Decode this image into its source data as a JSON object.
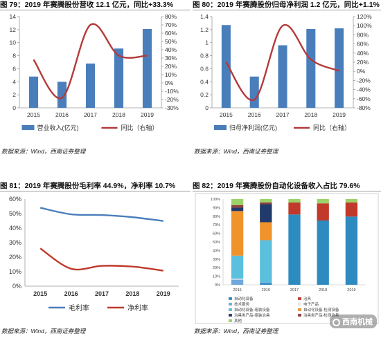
{
  "colors": {
    "bar": "#4a7ebb",
    "line": "#b33a3a",
    "line_blue": "#4a7ebb",
    "line_red": "#c0392b"
  },
  "panels": [
    {
      "title": "图 79：2019 年赛腾股份营收 12.1 亿元，同比+33.3%",
      "source": "数据来源：Wind，西南证券整理"
    },
    {
      "title": "图 80：2019 年赛腾股份归母净利润 1.2 亿元，同比+1.1%",
      "source": "数据来源：Wind，西南证券整理"
    },
    {
      "title": "图 81：2019 年赛腾股份毛利率 44.9%，净利率 10.7%",
      "source": "数据来源：Wind，西南证券整理"
    },
    {
      "title": "图 82：2019 年赛腾股份自动化设备收入占比 79.6%",
      "source": "数据来源：Wind，西南证券整理"
    }
  ],
  "watermark": "西南机械",
  "chart_data": [
    {
      "type": "bar",
      "categories": [
        "2015",
        "2016",
        "2017",
        "2018",
        "2019"
      ],
      "series": [
        {
          "name": "营业收入(亿元)",
          "type": "bar",
          "axis": "left",
          "values": [
            4.8,
            4.0,
            6.8,
            9.1,
            12.1
          ]
        },
        {
          "name": "同比（右轴）",
          "type": "line",
          "axis": "right",
          "values": [
            28,
            -18,
            70,
            33,
            33
          ]
        }
      ],
      "left_ylim": [
        0,
        14
      ],
      "left_ticks": [
        "0",
        "2",
        "4",
        "6",
        "8",
        "10",
        "12",
        "14"
      ],
      "right_ylim": [
        -30,
        80
      ],
      "right_ticks": [
        "-30%",
        "-20%",
        "-10%",
        "0%",
        "10%",
        "20%",
        "30%",
        "40%",
        "50%",
        "60%",
        "70%",
        "80%"
      ],
      "legend": "bottom"
    },
    {
      "type": "bar",
      "categories": [
        "2015",
        "2016",
        "2017",
        "2018",
        "2019"
      ],
      "series": [
        {
          "name": "归母净利润(亿元)",
          "type": "bar",
          "axis": "left",
          "values": [
            1.27,
            0.48,
            0.96,
            1.21,
            1.22
          ]
        },
        {
          "name": "同比（右轴）",
          "type": "line",
          "axis": "right",
          "values": [
            20,
            -62,
            100,
            26,
            1.1
          ]
        }
      ],
      "left_ylim": [
        0,
        1.4
      ],
      "left_ticks": [
        "0",
        "0.2",
        "0.4",
        "0.6",
        "0.8",
        "1",
        "1.2",
        "1.4"
      ],
      "right_ylim": [
        -80,
        120
      ],
      "right_ticks": [
        "-80%",
        "-60%",
        "-40%",
        "-20%",
        "0%",
        "20%",
        "40%",
        "60%",
        "80%",
        "100%",
        "120%"
      ],
      "legend": "bottom"
    },
    {
      "type": "line",
      "categories": [
        "2015",
        "2016",
        "2017",
        "2018",
        "2019"
      ],
      "series": [
        {
          "name": "毛利率",
          "values": [
            54,
            49.5,
            49,
            47.5,
            44.9
          ]
        },
        {
          "name": "净利率",
          "values": [
            26,
            12,
            14,
            13.5,
            10.7
          ]
        }
      ],
      "ylim": [
        0,
        60
      ],
      "y_ticks": [
        "0%",
        "10%",
        "20%",
        "30%",
        "40%",
        "50%",
        "60%"
      ],
      "legend": "bottom"
    },
    {
      "type": "bar",
      "stacked": true,
      "categories": [
        "2015",
        "2016",
        "2017",
        "2018",
        "2019"
      ],
      "series": [
        {
          "name": "自动化设备",
          "color": "#2e8bc0",
          "values": [
            0,
            2,
            82,
            75,
            79.6
          ]
        },
        {
          "name": "治具",
          "color": "#c0392b",
          "values": [
            0,
            0,
            14,
            20,
            16.4
          ]
        },
        {
          "name": "技术服务",
          "color": "#6fa8dc",
          "values": [
            6,
            1,
            0,
            0,
            0
          ]
        },
        {
          "name": "电子产品",
          "color": "#eeeeee",
          "values": [
            1,
            0,
            0,
            0,
            0
          ]
        },
        {
          "name": "自动化设备-组装设备",
          "color": "#5bc0de",
          "values": [
            27,
            49,
            0,
            0,
            0
          ]
        },
        {
          "name": "自动化设备-检测设备",
          "color": "#f0932b",
          "values": [
            52,
            21,
            0,
            0,
            0
          ]
        },
        {
          "name": "治具类产品-组装治具",
          "color": "#1f3a6b",
          "values": [
            4,
            21,
            0,
            0,
            0
          ]
        },
        {
          "name": "治具类产品-检测治具",
          "color": "#8e3b3b",
          "values": [
            3,
            2,
            0,
            0,
            0
          ]
        },
        {
          "name": "其他",
          "color": "#9bd36a",
          "values": [
            7,
            4,
            4,
            5,
            4
          ]
        }
      ],
      "ylim": [
        0,
        100
      ],
      "y_ticks": [
        "0%",
        "10%",
        "20%",
        "30%",
        "40%",
        "50%",
        "60%",
        "70%",
        "80%",
        "90%",
        "100%"
      ],
      "legend": "bottom"
    }
  ]
}
